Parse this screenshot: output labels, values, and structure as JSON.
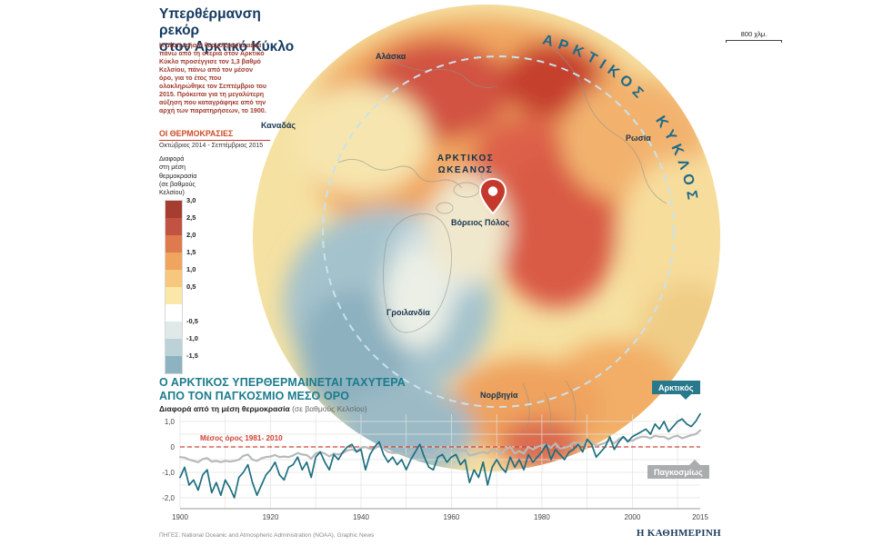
{
  "header": {
    "title_line1": "Υπερθέρμανση ρεκόρ",
    "title_line2": "στον Αρκτικό Κύκλο",
    "intro": "Η μέση ετήσια θερμοκρασία αέρα πάνω από τη στεριά στον Αρκτικό Κύκλο προσέγγισε τον 1,3 βαθμό Κελσίου, πάνω από τον μέσον όρο, για το έτος που ολοκληρώθηκε τον Σεπτέμβριο του 2015. Πρόκειται για τη μεγαλύτερη αύξηση που καταγράφηκε από την αρχή των παρατηρήσεων, το 1900."
  },
  "legend": {
    "heading": "ΟΙ ΘΕΡΜΟΚΡΑΣΙΕΣ",
    "period": "Οκτώβριος 2014 - Σεπτέμβριος 2015",
    "caption_lines": [
      "Διαφορά",
      "στη μέση",
      "θερμοκρασία",
      "(σε βαθμούς",
      "Κελσίου)"
    ],
    "bands": [
      {
        "color": "#a63d31",
        "label": "3,0"
      },
      {
        "color": "#c25343",
        "label": "2,5"
      },
      {
        "color": "#de7a4e",
        "label": "2,0"
      },
      {
        "color": "#efa55e",
        "label": "1,5"
      },
      {
        "color": "#f6c77d",
        "label": "1,0"
      },
      {
        "color": "#fbe7a8",
        "label": "0,5"
      },
      {
        "color": "#ffffff",
        "label": ""
      },
      {
        "color": "#dfe9e8",
        "label": "-0,5"
      },
      {
        "color": "#bcd2d6",
        "label": "-1,0"
      },
      {
        "color": "#8cb3bf",
        "label": "-1,5"
      }
    ]
  },
  "map": {
    "scale_label": "800 χλμ.",
    "arctic_circle_label": "ΑΡΚΤΙΚΟΣ ΚΥΚΛΟΣ",
    "labels": {
      "alaska": "Αλάσκα",
      "canada": "Καναδάς",
      "russia": "Ρωσία",
      "ocean_line1": "ΑΡΚΤΙΚΟΣ",
      "ocean_line2": "ΩΚΕΑΝΟΣ",
      "north_pole": "Βόρειος Πόλος",
      "greenland": "Γροιλανδία",
      "norway": "Νορβηγία"
    },
    "palette": {
      "base_yellow": "#f5e1a2",
      "warm_red": "#c6402f",
      "warm_orange": "#f0a660",
      "cool_blue": "#8db1bf",
      "circle_dash": "#c9e2ec"
    }
  },
  "chart_data": {
    "type": "line",
    "title": "Ο ΑΡΚΤΙΚΟΣ ΥΠΕΡΘΕΡΜΑΙΝΕΤΑΙ ΤΑΧΥΤΕΡΑ ΑΠΟ ΤΟΝ ΠΑΓΚΟΣΜΙΟ ΜΕΣΟ ΟΡΟ",
    "title_lines": [
      "Ο ΑΡΚΤΙΚΟΣ ΥΠΕΡΘΕΡΜΑΙΝΕΤΑΙ ΤΑΧΥΤΕΡΑ",
      "ΑΠΟ ΤΟΝ ΠΑΓΚΟΣΜΙΟ ΜΕΣΟ ΟΡΟ"
    ],
    "subtitle_bold": "Διαφορά από τη μέση θερμοκρασία",
    "subtitle_light": "(σε βαθμούς Κελσίου)",
    "baseline_label": "Μέσος όρος 1981- 2010",
    "x_start": 1900,
    "x_end": 2015,
    "x_ticks": [
      1900,
      1920,
      1940,
      1960,
      1980,
      2000,
      2015
    ],
    "y_ticks": [
      {
        "v": 1,
        "label": "1,0"
      },
      {
        "v": 0,
        "label": "0"
      },
      {
        "v": -1,
        "label": "-1,0"
      },
      {
        "v": -2,
        "label": "-2,0"
      }
    ],
    "ylim": [
      -2.5,
      1.3
    ],
    "grid": true,
    "legend_position": "right",
    "series": [
      {
        "name": "Αρκτικός",
        "color": "#1d6f80",
        "values": [
          -1.2,
          -0.8,
          -1.5,
          -1.3,
          -1.7,
          -1.1,
          -0.9,
          -1.8,
          -1.4,
          -1.9,
          -1.3,
          -1.6,
          -2.0,
          -1.2,
          -1.0,
          -0.7,
          -1.4,
          -1.9,
          -1.5,
          -1.1,
          -0.9,
          -0.6,
          -1.1,
          -1.3,
          -0.8,
          -0.7,
          -0.4,
          -0.9,
          -0.6,
          -1.2,
          -0.4,
          -0.2,
          -0.6,
          -0.9,
          -0.3,
          -0.5,
          -0.2,
          0.0,
          0.1,
          -0.2,
          -0.1,
          -0.9,
          -0.3,
          0.0,
          0.2,
          -0.3,
          -0.6,
          -0.4,
          -0.7,
          -0.5,
          -0.9,
          -0.5,
          -0.2,
          0.1,
          -0.4,
          -0.8,
          -0.9,
          -0.4,
          -0.3,
          -0.6,
          -0.4,
          -0.3,
          -0.7,
          -0.5,
          -1.4,
          -0.9,
          -1.2,
          -0.6,
          -1.5,
          -0.8,
          -0.5,
          -0.8,
          -1.0,
          -0.4,
          -0.8,
          -0.5,
          -0.9,
          -0.3,
          -0.6,
          -0.4,
          -0.2,
          0.1,
          -0.5,
          -0.1,
          -0.3,
          -0.5,
          -0.2,
          -0.1,
          0.1,
          -0.2,
          0.3,
          0.1,
          -0.4,
          -0.2,
          0.0,
          0.4,
          -0.1,
          0.2,
          0.4,
          0.2,
          0.4,
          0.5,
          0.6,
          0.7,
          0.5,
          0.9,
          0.7,
          1.0,
          0.6,
          0.8,
          1.0,
          1.1,
          0.9,
          0.8,
          1.0,
          1.3
        ]
      },
      {
        "name": "Παγκοσμίως",
        "color": "#b7babb",
        "values": [
          -0.4,
          -0.42,
          -0.5,
          -0.55,
          -0.6,
          -0.48,
          -0.44,
          -0.58,
          -0.55,
          -0.6,
          -0.55,
          -0.58,
          -0.55,
          -0.5,
          -0.35,
          -0.3,
          -0.5,
          -0.55,
          -0.45,
          -0.4,
          -0.38,
          -0.32,
          -0.4,
          -0.38,
          -0.4,
          -0.34,
          -0.24,
          -0.3,
          -0.32,
          -0.46,
          -0.26,
          -0.2,
          -0.26,
          -0.38,
          -0.26,
          -0.3,
          -0.24,
          -0.14,
          -0.1,
          -0.16,
          -0.04,
          0.0,
          -0.08,
          -0.06,
          0.04,
          -0.06,
          -0.2,
          -0.24,
          -0.24,
          -0.26,
          -0.36,
          -0.2,
          -0.1,
          -0.06,
          -0.26,
          -0.3,
          -0.36,
          -0.14,
          -0.1,
          -0.16,
          -0.14,
          -0.1,
          -0.16,
          -0.12,
          -0.34,
          -0.3,
          -0.24,
          -0.2,
          -0.26,
          -0.1,
          -0.16,
          -0.26,
          -0.1,
          0.0,
          -0.26,
          -0.16,
          -0.26,
          0.0,
          -0.1,
          0.0,
          0.06,
          0.1,
          -0.04,
          0.14,
          -0.06,
          -0.04,
          0.02,
          0.16,
          0.16,
          0.1,
          0.24,
          0.2,
          0.04,
          0.1,
          0.16,
          0.26,
          0.14,
          0.3,
          0.4,
          0.24,
          0.24,
          0.34,
          0.4,
          0.4,
          0.34,
          0.44,
          0.4,
          0.4,
          0.3,
          0.4,
          0.44,
          0.34,
          0.4,
          0.46,
          0.5,
          0.65
        ]
      }
    ]
  },
  "footer": {
    "sources": "ΠΗΓΕΣ: National Oceanic and Atmospheric Administration (NOAA), Graphic News",
    "logo": "Η ΚΑΘΗΜΕΡΙΝΗ"
  }
}
